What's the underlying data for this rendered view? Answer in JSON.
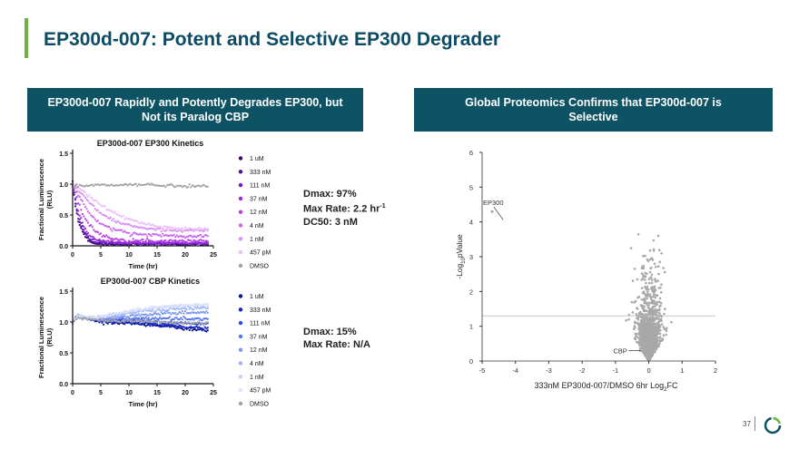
{
  "page": {
    "title": "EP300d-007: Potent and Selective EP300 Degrader",
    "banner_left": [
      "EP300d-007 Rapidly and Potently Degrades EP300, but",
      "Not its Paralog CBP"
    ],
    "banner_right": [
      "Global Proteomics Confirms that EP300d-007 is",
      "Selective"
    ],
    "page_number": "37"
  },
  "stats": {
    "ep300": {
      "dmax": "Dmax: 97%",
      "max_rate_prefix": "Max Rate: 2.2 hr",
      "max_rate_sup": "-1",
      "dc50": "DC50: 3 nM"
    },
    "cbp": {
      "dmax": "Dmax: 15%",
      "max_rate": "Max Rate: N/A"
    }
  },
  "chart_data": [
    {
      "type": "line",
      "title": "EP300d-007 EP300 Kinetics",
      "xlabel": "Time (hr)",
      "ylabel": "Fractional  Luminescence (RLU)",
      "xlim": [
        0,
        25
      ],
      "ylim": [
        0,
        1.5
      ],
      "xticks": [
        "0",
        "5",
        "10",
        "15",
        "20",
        "25"
      ],
      "yticks": [
        "0.0",
        "0.5",
        "1.0",
        "1.5"
      ],
      "x": [
        0,
        0.5,
        1,
        2,
        3,
        4,
        5,
        7,
        10,
        13,
        16,
        20,
        24
      ],
      "series": [
        {
          "name": "1 uM",
          "color": "#3a0770",
          "values": [
            1.0,
            0.65,
            0.4,
            0.18,
            0.08,
            0.04,
            0.03,
            0.03,
            0.03,
            0.03,
            0.03,
            0.03,
            0.03
          ]
        },
        {
          "name": "333 nM",
          "color": "#4f0f9a",
          "values": [
            1.0,
            0.68,
            0.44,
            0.2,
            0.09,
            0.05,
            0.035,
            0.03,
            0.03,
            0.03,
            0.03,
            0.03,
            0.03
          ]
        },
        {
          "name": "111 nM",
          "color": "#6a1fc2",
          "values": [
            1.0,
            0.72,
            0.5,
            0.25,
            0.12,
            0.07,
            0.05,
            0.04,
            0.04,
            0.04,
            0.04,
            0.04,
            0.04
          ]
        },
        {
          "name": "37 nM",
          "color": "#9b2de0",
          "values": [
            1.0,
            0.78,
            0.58,
            0.32,
            0.18,
            0.11,
            0.08,
            0.06,
            0.05,
            0.05,
            0.05,
            0.05,
            0.05
          ]
        },
        {
          "name": "12 nM",
          "color": "#b740e8",
          "values": [
            1.0,
            0.85,
            0.7,
            0.48,
            0.33,
            0.24,
            0.18,
            0.12,
            0.09,
            0.08,
            0.08,
            0.08,
            0.08
          ]
        },
        {
          "name": "4 nM",
          "color": "#c866ee",
          "values": [
            1.0,
            0.93,
            0.84,
            0.66,
            0.53,
            0.43,
            0.36,
            0.27,
            0.21,
            0.18,
            0.17,
            0.16,
            0.16
          ]
        },
        {
          "name": "1 nM",
          "color": "#d98ef3",
          "values": [
            1.0,
            0.96,
            0.9,
            0.8,
            0.7,
            0.61,
            0.53,
            0.42,
            0.33,
            0.28,
            0.26,
            0.25,
            0.25
          ]
        },
        {
          "name": "457 pM",
          "color": "#ebc0f8",
          "values": [
            1.0,
            0.98,
            0.95,
            0.88,
            0.8,
            0.73,
            0.66,
            0.55,
            0.43,
            0.35,
            0.3,
            0.28,
            0.27
          ]
        },
        {
          "name": "DMSO",
          "color": "#a3a3a3",
          "values": [
            1.0,
            0.98,
            0.97,
            0.97,
            0.98,
            0.98,
            0.99,
            0.98,
            0.99,
            0.99,
            0.98,
            0.97,
            0.97
          ]
        }
      ]
    },
    {
      "type": "line",
      "title": "EP300d-007 CBP Kinetics",
      "xlabel": "Time (hr)",
      "ylabel": "Fractional  Luminescence (RLU)",
      "xlim": [
        0,
        25
      ],
      "ylim": [
        0,
        1.5
      ],
      "xticks": [
        "0",
        "5",
        "10",
        "15",
        "20",
        "25"
      ],
      "yticks": [
        "0.0",
        "0.5",
        "1.0",
        "1.5"
      ],
      "x": [
        0,
        0.5,
        1,
        2,
        3,
        4,
        5,
        7,
        10,
        13,
        16,
        20,
        24
      ],
      "series": [
        {
          "name": "1 uM",
          "color": "#0a1594",
          "values": [
            1.0,
            1.07,
            1.1,
            1.07,
            1.04,
            1.02,
            1.0,
            0.99,
            0.98,
            0.96,
            0.93,
            0.89,
            0.86
          ]
        },
        {
          "name": "333 nM",
          "color": "#1426c4",
          "values": [
            1.0,
            1.07,
            1.1,
            1.07,
            1.05,
            1.03,
            1.01,
            1.0,
            1.0,
            0.98,
            0.96,
            0.92,
            0.9
          ]
        },
        {
          "name": "111 nM",
          "color": "#2e4ae8",
          "values": [
            1.0,
            1.07,
            1.1,
            1.08,
            1.06,
            1.04,
            1.03,
            1.03,
            1.03,
            1.02,
            1.0,
            0.98,
            0.96
          ]
        },
        {
          "name": "37 nM",
          "color": "#5573ee",
          "values": [
            1.0,
            1.07,
            1.1,
            1.08,
            1.06,
            1.05,
            1.04,
            1.05,
            1.05,
            1.06,
            1.06,
            1.05,
            1.04
          ]
        },
        {
          "name": "12 nM",
          "color": "#7b96f2",
          "values": [
            1.0,
            1.07,
            1.1,
            1.08,
            1.06,
            1.05,
            1.06,
            1.08,
            1.1,
            1.12,
            1.14,
            1.15,
            1.15
          ]
        },
        {
          "name": "4 nM",
          "color": "#9fb4f6",
          "values": [
            1.0,
            1.07,
            1.1,
            1.08,
            1.07,
            1.07,
            1.08,
            1.1,
            1.14,
            1.18,
            1.2,
            1.22,
            1.22
          ]
        },
        {
          "name": "1 nM",
          "color": "#c4d2fa",
          "values": [
            1.0,
            1.07,
            1.1,
            1.08,
            1.07,
            1.07,
            1.09,
            1.12,
            1.17,
            1.21,
            1.24,
            1.26,
            1.27
          ]
        },
        {
          "name": "457 pM",
          "color": "#dbe4fc",
          "values": [
            1.0,
            1.07,
            1.1,
            1.08,
            1.07,
            1.08,
            1.1,
            1.13,
            1.18,
            1.22,
            1.25,
            1.27,
            1.28
          ]
        },
        {
          "name": "DMSO",
          "color": "#a3a3a3",
          "values": [
            1.0,
            1.06,
            1.08,
            1.06,
            1.05,
            1.04,
            1.03,
            1.02,
            1.02,
            1.01,
            1.0,
            0.99,
            0.98
          ]
        }
      ]
    },
    {
      "type": "scatter",
      "xlabel": "333nM EP300d-007/DMSO 6hr Log",
      "xlabel_sub": "2",
      "xlabel_end": "FC",
      "ylabel_prefix": "-Log",
      "ylabel_sub": "10",
      "ylabel_end": "pValue",
      "xlim": [
        -5,
        2
      ],
      "ylim": [
        0,
        6
      ],
      "xticks": [
        "-5",
        "-4",
        "-3",
        "-2",
        "-1",
        "0",
        "1",
        "2"
      ],
      "yticks": [
        "0",
        "1",
        "2",
        "3",
        "4",
        "5",
        "6"
      ],
      "threshold_y": 1.3,
      "point_color": "#a8a8a8",
      "point_count": 1400,
      "annotations": [
        {
          "text": "EP300",
          "x": -4.7,
          "y": 4.3
        },
        {
          "text": "CBP",
          "x": -0.25,
          "y": 0.3
        }
      ]
    }
  ]
}
